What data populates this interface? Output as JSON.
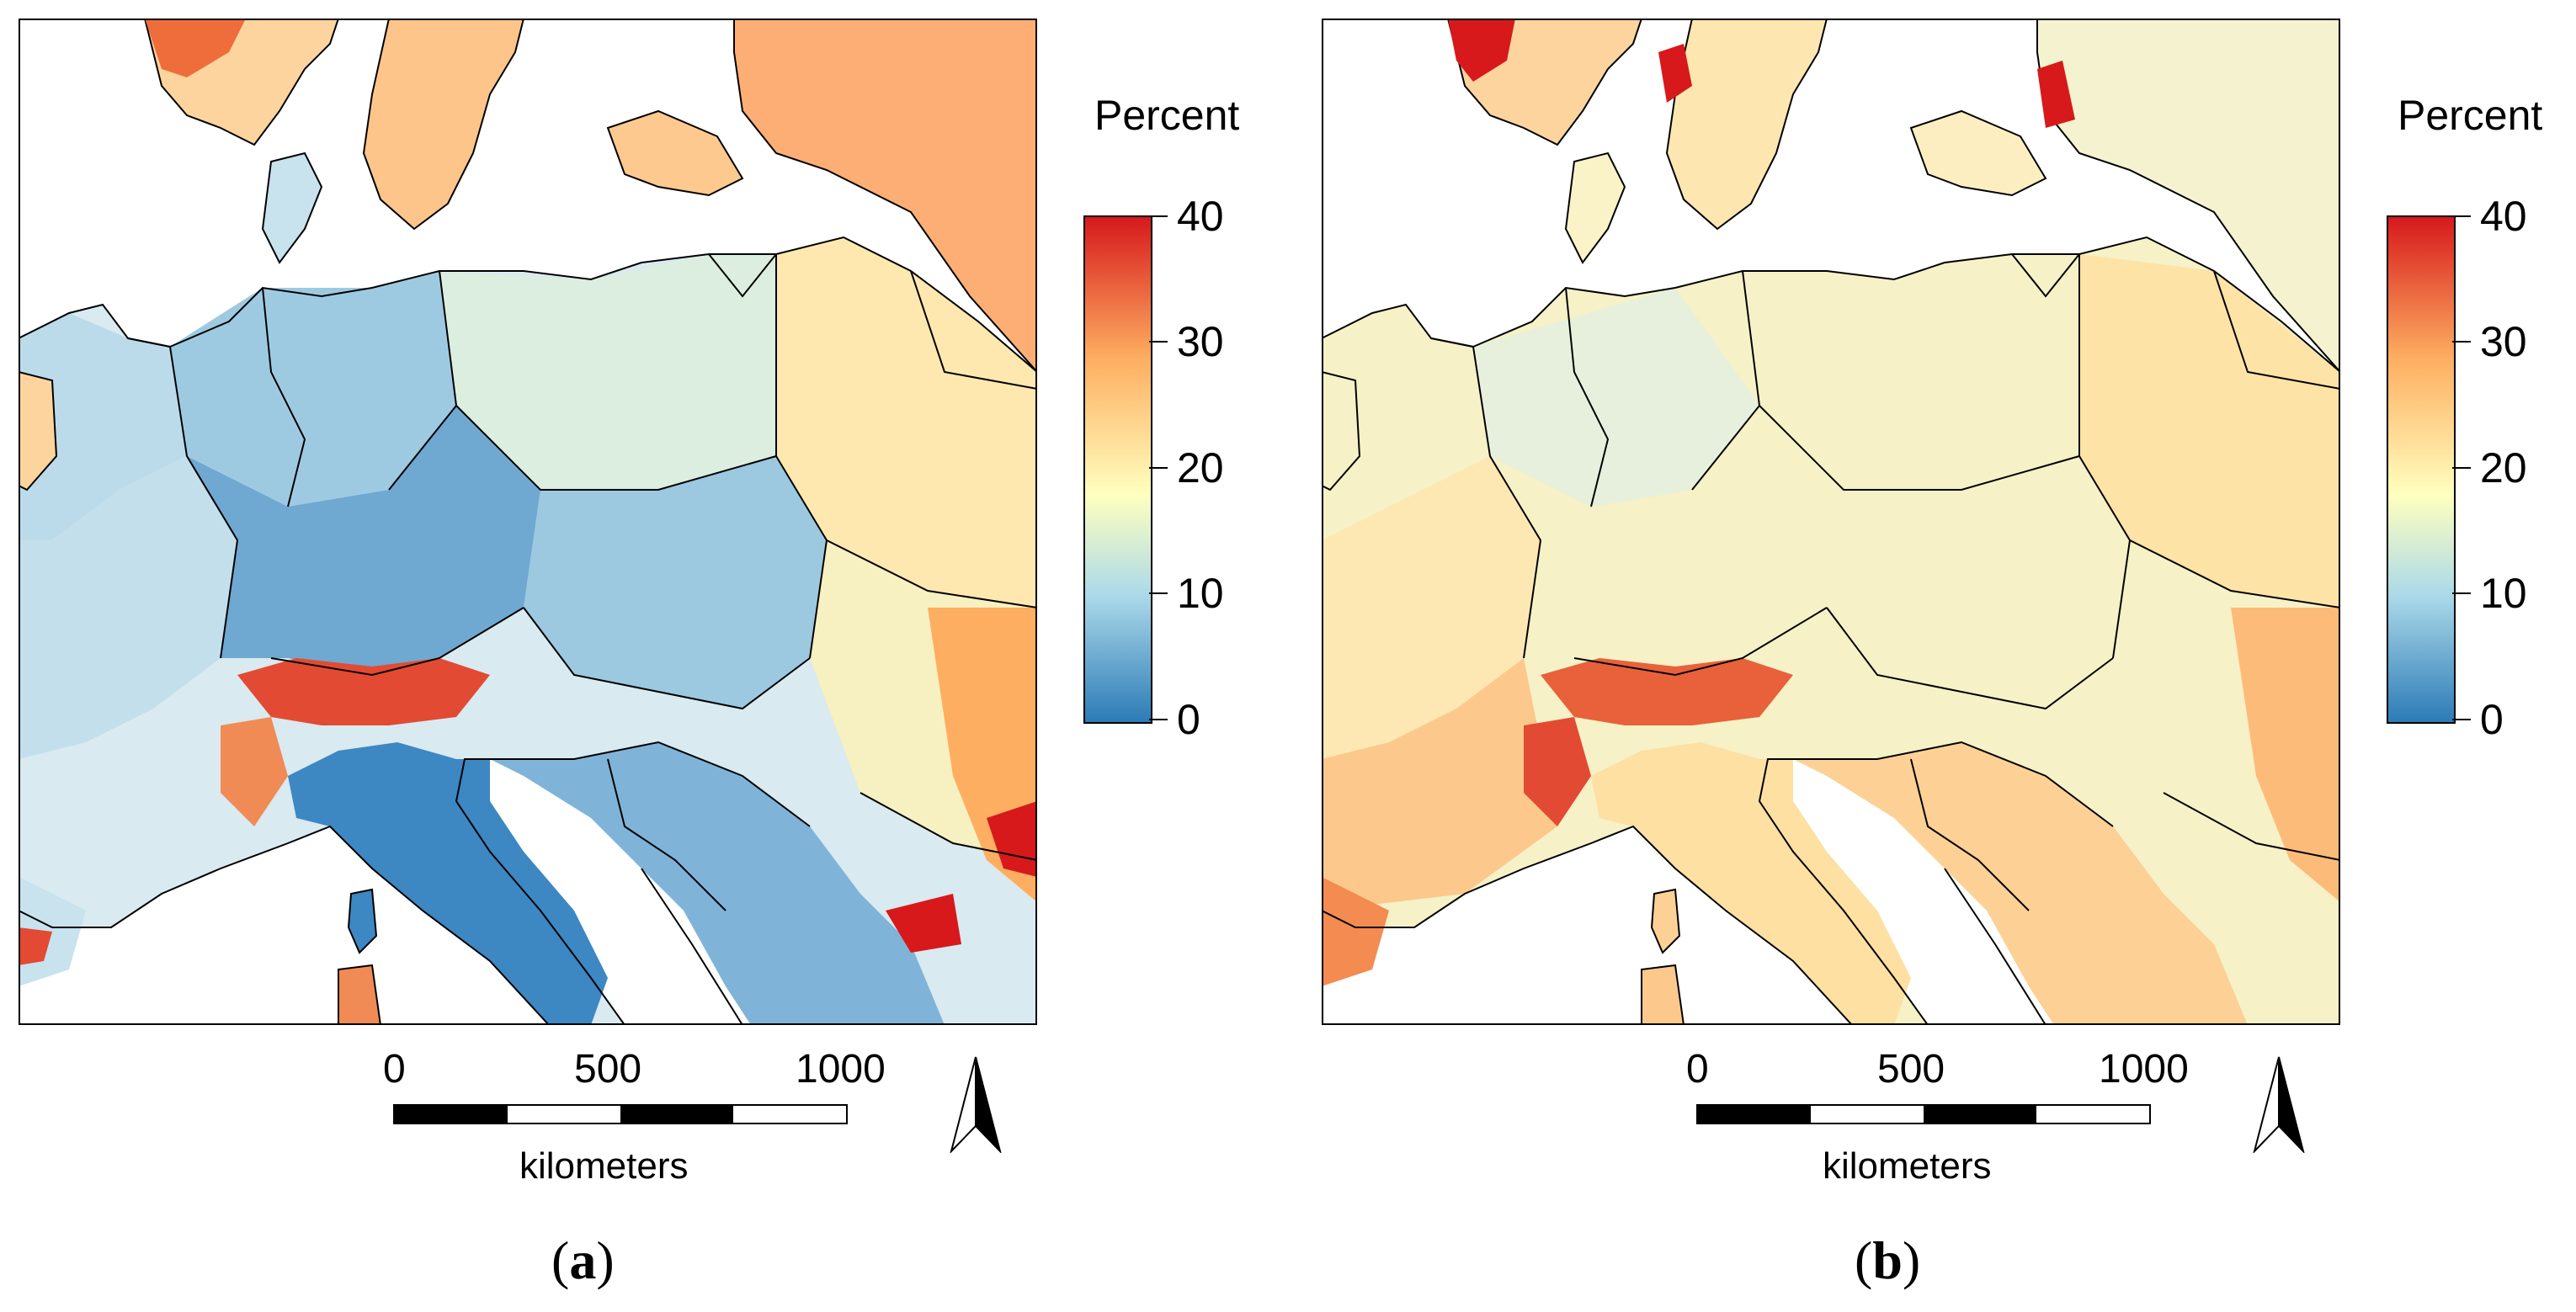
{
  "panels": [
    {
      "caption": "a",
      "legend": {
        "title": "Percent",
        "ticks": [
          "0",
          "10",
          "20",
          "30",
          "40"
        ],
        "colors": [
          "#2c7bb6",
          "#abd9e9",
          "#ffffbf",
          "#fdae61",
          "#d7191c"
        ]
      },
      "scale": {
        "labels": [
          "0",
          "500",
          "1000"
        ],
        "unit": "kilometers"
      },
      "icons": {
        "north": "north-arrow-icon"
      }
    },
    {
      "caption": "b",
      "legend": {
        "title": "Percent",
        "ticks": [
          "0",
          "10",
          "20",
          "30",
          "40"
        ],
        "colors": [
          "#2c7bb6",
          "#abd9e9",
          "#ffffbf",
          "#fdae61",
          "#d7191c"
        ]
      },
      "scale": {
        "labels": [
          "0",
          "500",
          "1000"
        ],
        "unit": "kilometers"
      },
      "icons": {
        "north": "north-arrow-icon"
      }
    }
  ]
}
